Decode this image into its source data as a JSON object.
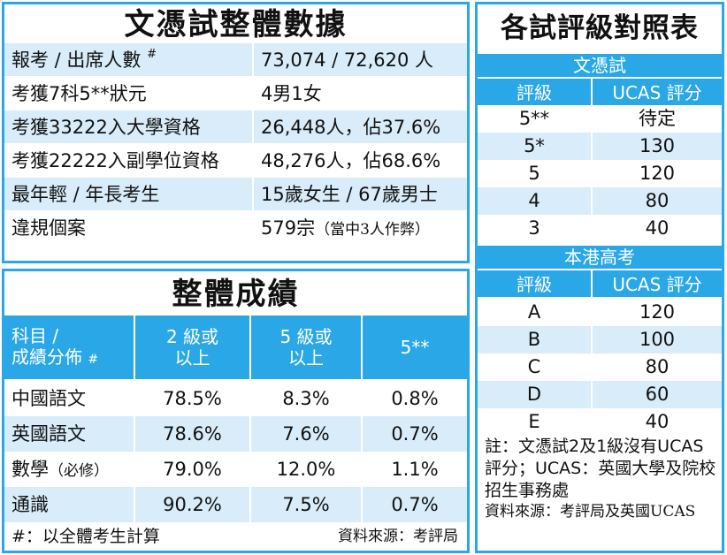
{
  "stats": {
    "title": "文憑試整體數據",
    "rows": [
      {
        "label": "報考 / 出席人數",
        "note_mark": "#",
        "value": "73,074 / 72,620 人"
      },
      {
        "label": "考獲7科5**狀元",
        "value": "4男1女"
      },
      {
        "label": "考獲33222入大學資格",
        "value": "26,448人，佔37.6%"
      },
      {
        "label": "考獲22222入副學位資格",
        "value": "48,276人，佔68.6%"
      },
      {
        "label": "最年輕 / 年長考生",
        "value": "15歲女生 / 67歲男士"
      },
      {
        "label": "違規個案",
        "value": "579宗",
        "value_note": "（當中3人作弊）"
      }
    ]
  },
  "results": {
    "title": "整體成績",
    "headers": [
      {
        "line1": "科目 /",
        "line2": "成績分佈",
        "mark": "#"
      },
      {
        "line1": "2 級或",
        "line2": "以上"
      },
      {
        "line1": "5 級或",
        "line2": "以上"
      },
      {
        "line1": "5**",
        "line2": ""
      }
    ],
    "rows": [
      {
        "subject": "中國語文",
        "subject_note": "",
        "l2": "78.5%",
        "l5": "8.3%",
        "l5ss": "0.8%"
      },
      {
        "subject": "英國語文",
        "subject_note": "",
        "l2": "78.6%",
        "l5": "7.6%",
        "l5ss": "0.7%"
      },
      {
        "subject": "數學",
        "subject_note": "（必修）",
        "l2": "79.0%",
        "l5": "12.0%",
        "l5ss": "1.1%"
      },
      {
        "subject": "通識",
        "subject_note": "",
        "l2": "90.2%",
        "l5": "7.5%",
        "l5ss": "0.7%"
      }
    ],
    "footnote": "#：以全體考生計算",
    "source": "資料來源：考評局"
  },
  "grades": {
    "title": "各試評級對照表",
    "sections": [
      {
        "name": "文憑試",
        "col_grade": "評級",
        "col_ucas": "UCAS 評分",
        "rows": [
          {
            "grade": "5**",
            "ucas": "待定"
          },
          {
            "grade": "5*",
            "ucas": "130"
          },
          {
            "grade": "5",
            "ucas": "120"
          },
          {
            "grade": "4",
            "ucas": "80"
          },
          {
            "grade": "3",
            "ucas": "40"
          }
        ]
      },
      {
        "name": "本港高考",
        "col_grade": "評級",
        "col_ucas": "UCAS 評分",
        "rows": [
          {
            "grade": "A",
            "ucas": "120"
          },
          {
            "grade": "B",
            "ucas": "100"
          },
          {
            "grade": "C",
            "ucas": "80"
          },
          {
            "grade": "D",
            "ucas": "60"
          },
          {
            "grade": "E",
            "ucas": "40"
          }
        ]
      }
    ],
    "note": "註：文憑試2及1級沒有UCAS評分；UCAS：英國大學及院校招生事務處",
    "source": "資料來源：考評局及英國UCAS"
  },
  "colors": {
    "accent": "#29a7e6",
    "row_tint": "#d8ecf9",
    "text": "#111111"
  }
}
